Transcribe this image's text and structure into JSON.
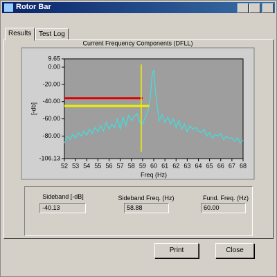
{
  "window": {
    "title": "Rotor Bar"
  },
  "tabs": [
    "Results",
    "Test Log"
  ],
  "chart_data": {
    "type": "line",
    "title": "Current Frequency Components (DFLL)",
    "x_label": "Freq (Hz)",
    "y_label": "[-db]",
    "x": [
      52,
      52.25,
      52.5,
      52.75,
      53,
      53.25,
      53.5,
      53.75,
      54,
      54.25,
      54.5,
      54.75,
      55,
      55.25,
      55.5,
      55.75,
      56,
      56.25,
      56.5,
      56.75,
      57,
      57.25,
      57.5,
      57.75,
      58,
      58.25,
      58.5,
      58.75,
      59,
      59.25,
      59.5,
      59.7,
      59.85,
      60,
      60.15,
      60.3,
      60.5,
      60.75,
      61,
      61.25,
      61.5,
      61.75,
      62,
      62.25,
      62.5,
      62.75,
      63,
      63.25,
      63.5,
      63.75,
      64,
      64.25,
      64.5,
      64.75,
      65,
      65.25,
      65.5,
      65.75,
      66,
      66.25,
      66.5,
      66.75,
      67,
      67.25,
      67.5,
      67.75,
      68
    ],
    "series": [
      {
        "name": "Spectrum",
        "color": "#3fe0e0",
        "values": [
          -88,
          -80,
          -84,
          -78,
          -82,
          -76,
          -80,
          -74,
          -79,
          -72,
          -77,
          -70,
          -75,
          -68,
          -74,
          -64,
          -72,
          -66,
          -70,
          -60,
          -72,
          -58,
          -68,
          -56,
          -62,
          -57,
          -54,
          -64,
          -66,
          -58,
          -50,
          -35,
          -10,
          -3,
          -28,
          -45,
          -62,
          -55,
          -64,
          -58,
          -66,
          -60,
          -70,
          -62,
          -72,
          -66,
          -75,
          -68,
          -72,
          -70,
          -74,
          -76,
          -72,
          -80,
          -76,
          -82,
          -78,
          -80,
          -77,
          -84,
          -80,
          -83,
          -82,
          -86,
          -82,
          -88,
          -85
        ]
      }
    ],
    "reference_lines": [
      {
        "value": -36,
        "xrange": [
          52,
          59
        ],
        "color": "#e00000"
      },
      {
        "value": -45,
        "xrange": [
          52,
          59.6
        ],
        "color": "#f0f000"
      }
    ],
    "cursor": {
      "x": 58.88,
      "color": "#f0f000"
    },
    "xlim": [
      52,
      68
    ],
    "ylim": [
      -106.13,
      9.65
    ],
    "xticks": [
      52,
      53,
      54,
      55,
      56,
      57,
      58,
      59,
      60,
      61,
      62,
      63,
      64,
      65,
      66,
      67,
      68
    ],
    "yticks": [
      9.65,
      {
        "value": 0,
        "label": "0.00"
      },
      {
        "value": -20,
        "label": "-20.00"
      },
      {
        "value": -40,
        "label": "-40.00"
      },
      {
        "value": -60,
        "label": "-60.00"
      },
      {
        "value": -80,
        "label": "-80.00"
      },
      -106.13
    ],
    "plot_background": "#9e9e9e"
  },
  "fields": [
    {
      "label": "Sideband [-dB]",
      "value": "-40.13"
    },
    {
      "label": "Sideband Freq. (Hz)",
      "value": "58.88"
    },
    {
      "label": "Fund. Freq. (Hz)",
      "value": "60.00"
    }
  ],
  "buttons": [
    "Print",
    "Close"
  ]
}
